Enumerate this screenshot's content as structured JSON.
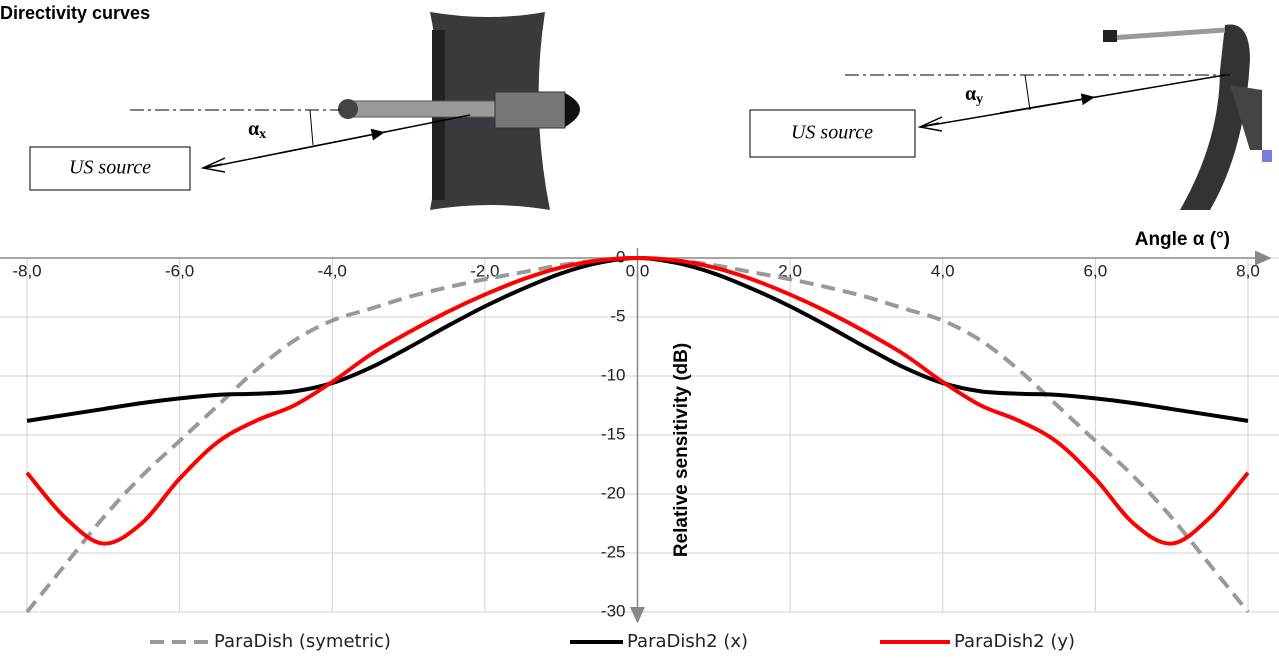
{
  "chart_data": {
    "type": "line",
    "title": "Directivity curves",
    "x_label": "Angle α (°)",
    "y_label": "Relative sensitivity  (dB)",
    "annotations": [
      {
        "text": "US source"
      },
      {
        "text": "US source"
      },
      {
        "symbol": "α",
        "subscript": "x"
      },
      {
        "symbol": "α",
        "subscript": "y"
      }
    ],
    "x": [
      -8,
      -7.5,
      -7,
      -6.5,
      -6,
      -5.5,
      -5,
      -4.5,
      -4,
      -3.5,
      -3,
      -2.5,
      -2,
      -1.5,
      -1,
      -0.5,
      0,
      0.5,
      1,
      1.5,
      2,
      2.5,
      3,
      3.5,
      4,
      4.5,
      5,
      5.5,
      6,
      6.5,
      7,
      7.5,
      8
    ],
    "xlim": [
      -8,
      8
    ],
    "ylim": [
      -30,
      0
    ],
    "xticks": [
      {
        "value": -8,
        "label": "-8,0"
      },
      {
        "value": -6,
        "label": "-6,0"
      },
      {
        "value": -4,
        "label": "-4,0"
      },
      {
        "value": -2,
        "label": "-2,0"
      },
      {
        "value": 0,
        "label": "0,0"
      },
      {
        "value": 2,
        "label": "2,0"
      },
      {
        "value": 4,
        "label": "4,0"
      },
      {
        "value": 6,
        "label": "6,0"
      },
      {
        "value": 8,
        "label": "8,0"
      }
    ],
    "yticks": [
      0,
      -5,
      -10,
      -15,
      -20,
      -25,
      -30
    ],
    "grid": true,
    "legend": "bottom",
    "series": [
      {
        "name": "ParaDish (symetric)",
        "color": "#999999",
        "line_style": "dashed",
        "values": [
          -30,
          -26,
          -22,
          -18.5,
          -15.5,
          -12.5,
          -9.5,
          -7,
          -5.3,
          -4.3,
          -3.3,
          -2.5,
          -1.8,
          -1.2,
          -0.6,
          -0.2,
          0,
          -0.2,
          -0.6,
          -1.2,
          -1.8,
          -2.5,
          -3.3,
          -4.3,
          -5.3,
          -7,
          -9.5,
          -12.5,
          -15.5,
          -18.5,
          -22,
          -26,
          -30
        ]
      },
      {
        "name": "ParaDish2 (x)",
        "color": "#000000",
        "line_style": "solid",
        "values": [
          -13.8,
          -13.3,
          -12.8,
          -12.3,
          -11.9,
          -11.6,
          -11.5,
          -11.3,
          -10.6,
          -9.3,
          -7.6,
          -5.8,
          -4.1,
          -2.6,
          -1.3,
          -0.4,
          0,
          -0.4,
          -1.3,
          -2.6,
          -4.1,
          -5.8,
          -7.6,
          -9.3,
          -10.6,
          -11.3,
          -11.5,
          -11.6,
          -11.9,
          -12.3,
          -12.8,
          -13.3,
          -13.8
        ]
      },
      {
        "name": "ParaDish2 (y)",
        "color": "#ff0000",
        "line_style": "solid",
        "values": [
          -18.2,
          -22,
          -24.2,
          -22.5,
          -18.7,
          -15.6,
          -13.8,
          -12.5,
          -10.5,
          -8.2,
          -6.3,
          -4.6,
          -3.1,
          -1.8,
          -0.8,
          -0.2,
          0,
          -0.2,
          -0.8,
          -1.8,
          -3.1,
          -4.6,
          -6.3,
          -8.2,
          -10.5,
          -12.5,
          -13.8,
          -15.6,
          -18.7,
          -22.5,
          -24.2,
          -22,
          -18.2
        ]
      }
    ]
  }
}
